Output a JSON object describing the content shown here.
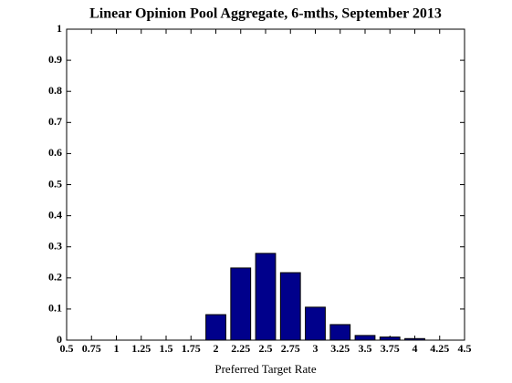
{
  "chart_data": {
    "type": "bar",
    "title": "Linear Opinion Pool Aggregate, 6-mths, September 2013",
    "x_label": "Preferred Target Rate",
    "x": [
      2,
      2.25,
      2.5,
      2.75,
      3,
      3.25,
      3.5,
      3.75,
      4
    ],
    "values": [
      0.082,
      0.232,
      0.279,
      0.217,
      0.106,
      0.05,
      0.015,
      0.01,
      0.005
    ],
    "color": "#00008b",
    "xlim": [
      0.5,
      4.5
    ],
    "xticks": [
      0.5,
      0.75,
      1,
      1.25,
      1.5,
      1.75,
      2,
      2.25,
      2.5,
      2.75,
      3,
      3.25,
      3.5,
      3.75,
      4,
      4.25,
      4.5
    ],
    "ylim": [
      0,
      1
    ],
    "yticks": [
      0,
      0.1,
      0.2,
      0.3,
      0.4,
      0.5,
      0.6,
      0.7,
      0.8,
      0.9,
      1
    ]
  }
}
